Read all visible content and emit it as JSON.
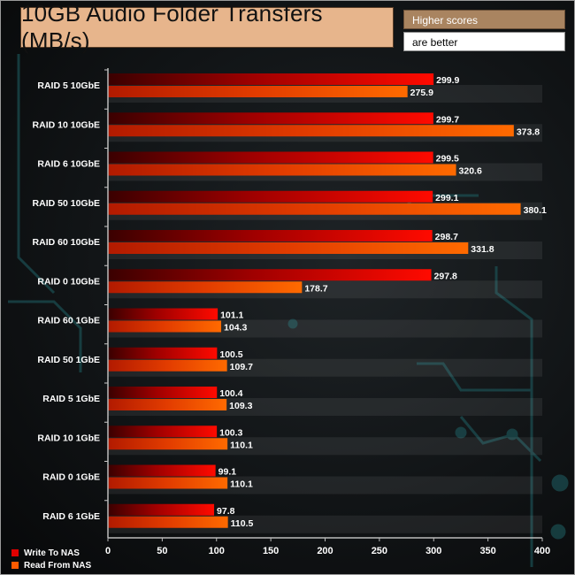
{
  "chart_data": {
    "type": "bar",
    "orientation": "horizontal",
    "title": "10GB Audio Folder Transfers (MB/s)",
    "notes": [
      "Higher scores",
      "are better"
    ],
    "categories": [
      "RAID 5 10GbE",
      "RAID 10 10GbE",
      "RAID 6 10GbE",
      "RAID 50 10GbE",
      "RAID 60 10GbE",
      "RAID 0 10GbE",
      "RAID 60 1GbE",
      "RAID 50 1GbE",
      "RAID 5 1GbE",
      "RAID 10 1GbE",
      "RAID 0 1GbE",
      "RAID 6 1GbE"
    ],
    "series": [
      {
        "name": "Write To NAS",
        "color": "#e00000",
        "values": [
          299.9,
          299.7,
          299.5,
          299.1,
          298.7,
          297.8,
          101.1,
          100.5,
          100.4,
          100.3,
          99.1,
          97.8
        ],
        "labels": [
          "299.9",
          "299.7",
          "299.5",
          "299.1",
          "298.7",
          "297.8",
          "101.1",
          "100.5",
          "100.4",
          "100.3",
          "99.1",
          "97.8"
        ]
      },
      {
        "name": "Read From NAS",
        "color": "#ff5a00",
        "values": [
          275.9,
          373.8,
          320.6,
          380.1,
          331.8,
          178.7,
          104.3,
          109.7,
          109.3,
          110.1,
          110.1,
          110.5
        ],
        "labels": [
          "275.9",
          "373.8",
          "320.6",
          "380.1",
          "331.8",
          "178.7",
          "104.3",
          "109.7",
          "109.3",
          "110.1",
          "110.1",
          "110.5"
        ]
      }
    ],
    "xlim": [
      0,
      400
    ],
    "xticks": [
      0,
      50,
      100,
      150,
      200,
      250,
      300,
      350,
      400
    ],
    "xtick_labels": [
      "0",
      "50",
      "100",
      "150",
      "200",
      "250",
      "300",
      "350",
      "400"
    ],
    "legend": "bottom-left",
    "grid": false
  }
}
